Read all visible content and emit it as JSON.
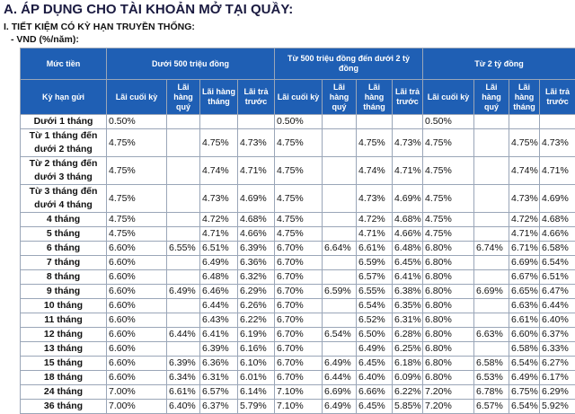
{
  "header": {
    "title": "A. ÁP DỤNG CHO TÀI KHOẢN MỞ TẠI QUẦY:",
    "section": "I. TIẾT KIỆM CÓ KỲ HẠN TRUYỀN THỐNG:",
    "currency": "- VND (%/năm):"
  },
  "table": {
    "corner": "Mức tiền",
    "term_header": "Kỳ hạn gửi",
    "groups": [
      "Dưới 500 triệu đồng",
      "Từ 500 triệu đồng đến dưới 2 tỷ đồng",
      "Từ 2 tỷ đồng"
    ],
    "sub_headers": [
      "Lãi cuối kỳ",
      "Lãi hàng quý",
      "Lãi hàng tháng",
      "Lãi trả trước",
      "Lãi cuối kỳ",
      "Lãi hàng quý",
      "Lãi hàng tháng",
      "Lãi trả trước",
      "Lãi cuối kỳ",
      "Lãi hàng quý",
      "Lãi hàng tháng",
      "Lãi trả trước"
    ],
    "rows": [
      {
        "term": "Dưới 1 tháng",
        "rates": [
          "0.50%",
          null,
          null,
          null,
          "0.50%",
          null,
          null,
          null,
          "0.50%",
          null,
          null,
          null
        ]
      },
      {
        "term": "Từ 1 tháng đến dưới 2 tháng",
        "rates": [
          "4.75%",
          null,
          "4.75%",
          "4.73%",
          "4.75%",
          null,
          "4.75%",
          "4.73%",
          "4.75%",
          null,
          "4.75%",
          "4.73%"
        ]
      },
      {
        "term": "Từ 2 tháng đến dưới 3 tháng",
        "rates": [
          "4.75%",
          null,
          "4.74%",
          "4.71%",
          "4.75%",
          null,
          "4.74%",
          "4.71%",
          "4.75%",
          null,
          "4.74%",
          "4.71%"
        ]
      },
      {
        "term": "Từ 3 tháng đến dưới 4 tháng",
        "rates": [
          "4.75%",
          null,
          "4.73%",
          "4.69%",
          "4.75%",
          null,
          "4.73%",
          "4.69%",
          "4.75%",
          null,
          "4.73%",
          "4.69%"
        ]
      },
      {
        "term": "4 tháng",
        "rates": [
          "4.75%",
          null,
          "4.72%",
          "4.68%",
          "4.75%",
          null,
          "4.72%",
          "4.68%",
          "4.75%",
          null,
          "4.72%",
          "4.68%"
        ]
      },
      {
        "term": "5 tháng",
        "rates": [
          "4.75%",
          null,
          "4.71%",
          "4.66%",
          "4.75%",
          null,
          "4.71%",
          "4.66%",
          "4.75%",
          null,
          "4.71%",
          "4.66%"
        ]
      },
      {
        "term": "6 tháng",
        "rates": [
          "6.60%",
          "6.55%",
          "6.51%",
          "6.39%",
          "6.70%",
          "6.64%",
          "6.61%",
          "6.48%",
          "6.80%",
          "6.74%",
          "6.71%",
          "6.58%"
        ]
      },
      {
        "term": "7 tháng",
        "rates": [
          "6.60%",
          null,
          "6.49%",
          "6.36%",
          "6.70%",
          null,
          "6.59%",
          "6.45%",
          "6.80%",
          null,
          "6.69%",
          "6.54%"
        ]
      },
      {
        "term": "8 tháng",
        "rates": [
          "6.60%",
          null,
          "6.48%",
          "6.32%",
          "6.70%",
          null,
          "6.57%",
          "6.41%",
          "6.80%",
          null,
          "6.67%",
          "6.51%"
        ]
      },
      {
        "term": "9 tháng",
        "rates": [
          "6.60%",
          "6.49%",
          "6.46%",
          "6.29%",
          "6.70%",
          "6.59%",
          "6.55%",
          "6.38%",
          "6.80%",
          "6.69%",
          "6.65%",
          "6.47%"
        ]
      },
      {
        "term": "10 tháng",
        "rates": [
          "6.60%",
          null,
          "6.44%",
          "6.26%",
          "6.70%",
          null,
          "6.54%",
          "6.35%",
          "6.80%",
          null,
          "6.63%",
          "6.44%"
        ]
      },
      {
        "term": "11 tháng",
        "rates": [
          "6.60%",
          null,
          "6.43%",
          "6.22%",
          "6.70%",
          null,
          "6.52%",
          "6.31%",
          "6.80%",
          null,
          "6.61%",
          "6.40%"
        ]
      },
      {
        "term": "12 tháng",
        "rates": [
          "6.60%",
          "6.44%",
          "6.41%",
          "6.19%",
          "6.70%",
          "6.54%",
          "6.50%",
          "6.28%",
          "6.80%",
          "6.63%",
          "6.60%",
          "6.37%"
        ]
      },
      {
        "term": "13 tháng",
        "rates": [
          "6.60%",
          null,
          "6.39%",
          "6.16%",
          "6.70%",
          null,
          "6.49%",
          "6.25%",
          "6.80%",
          null,
          "6.58%",
          "6.33%"
        ]
      },
      {
        "term": "15 tháng",
        "rates": [
          "6.60%",
          "6.39%",
          "6.36%",
          "6.10%",
          "6.70%",
          "6.49%",
          "6.45%",
          "6.18%",
          "6.80%",
          "6.58%",
          "6.54%",
          "6.27%"
        ]
      },
      {
        "term": "18 tháng",
        "rates": [
          "6.60%",
          "6.34%",
          "6.31%",
          "6.01%",
          "6.70%",
          "6.44%",
          "6.40%",
          "6.09%",
          "6.80%",
          "6.53%",
          "6.49%",
          "6.17%"
        ]
      },
      {
        "term": "24 tháng",
        "rates": [
          "7.00%",
          "6.61%",
          "6.57%",
          "6.14%",
          "7.10%",
          "6.69%",
          "6.66%",
          "6.22%",
          "7.20%",
          "6.78%",
          "6.75%",
          "6.29%"
        ]
      },
      {
        "term": "36 tháng",
        "rates": [
          "7.00%",
          "6.40%",
          "6.37%",
          "5.79%",
          "7.10%",
          "6.49%",
          "6.45%",
          "5.85%",
          "7.20%",
          "6.57%",
          "6.54%",
          "5.92%"
        ]
      }
    ]
  }
}
